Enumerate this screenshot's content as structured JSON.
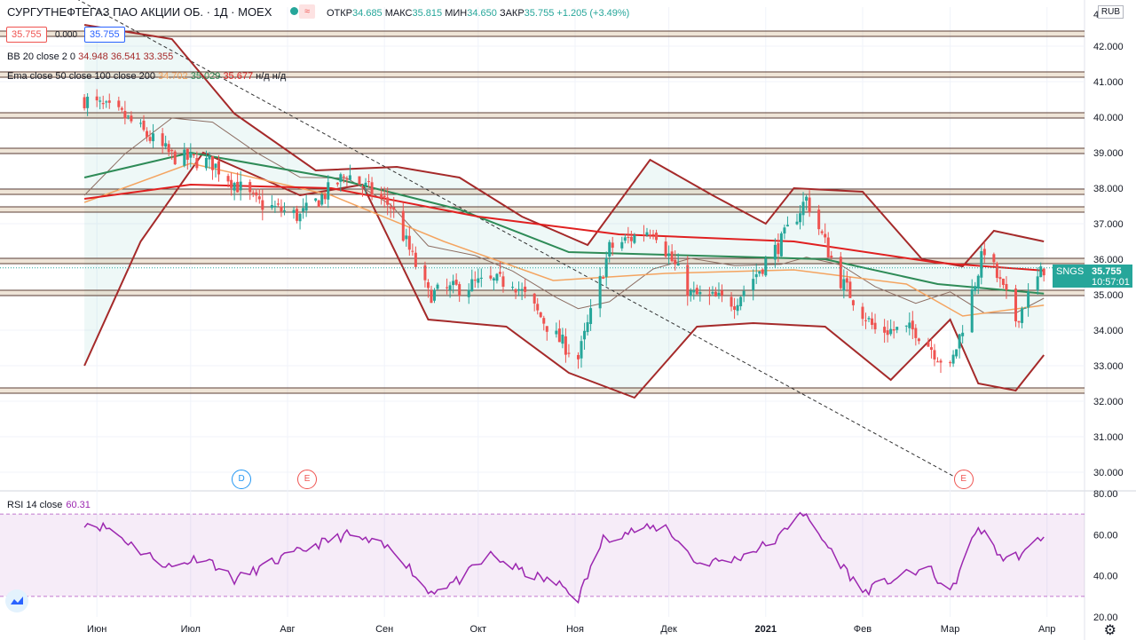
{
  "header": {
    "symbol_title": "СУРГУТНЕФТЕГАЗ ПАО АКЦИИ ОБ. · 1Д · MOEX",
    "status_icon": "market-open-dot",
    "status_box_icon": "≈",
    "ohlc": {
      "open_label": "ОТКР",
      "open": "34.685",
      "high_label": "МАКС",
      "high": "35.815",
      "low_label": "МИН",
      "low": "34.650",
      "close_label": "ЗАКР",
      "close": "35.755",
      "change": "+1.205 (+3.49%)"
    },
    "badges": {
      "bid": "35.755",
      "spread": "0.000",
      "ask": "35.755"
    },
    "currency": "RUB"
  },
  "legend": {
    "bb": {
      "label": "BB 20 close 2 0",
      "v1": "34.948",
      "v2": "36.541",
      "v3": "33.355"
    },
    "ema": {
      "label": "Ema close 50 close 100 close 200",
      "v1": "34.702",
      "v2": "35.029",
      "v3": "35.677",
      "na": "н/д н/д"
    }
  },
  "price_label": {
    "symbol": "SNGS",
    "price": "35.755",
    "countdown": "10:57:01"
  },
  "rsi": {
    "label": "RSI 14 close",
    "value": "60.31"
  },
  "events": [
    {
      "letter": "D",
      "type": "dividend",
      "date": "2020-07-17"
    },
    {
      "letter": "E",
      "type": "earnings",
      "date": "2020-08-07"
    },
    {
      "letter": "E",
      "type": "earnings",
      "date": "2021-03-05"
    }
  ],
  "colors": {
    "up": "#26a69a",
    "down": "#ef5350",
    "bb": "#a52a2a",
    "ema50": "#f4a460",
    "ema100": "#2e8b57",
    "ema200": "#e02020",
    "rsi": "#9c27b0",
    "hline": "#5d4037"
  },
  "chart_data": [
    {
      "type": "candlestick",
      "title": "СУРГУТНЕФТЕГАЗ ПАО АКЦИИ ОБ. · 1Д · MOEX",
      "x_tick_labels": [
        "Июн",
        "Июл",
        "Авг",
        "Сен",
        "Окт",
        "Ноя",
        "Дек",
        "2021",
        "Фев",
        "Мар",
        "Апр"
      ],
      "ylim": [
        29.5,
        43.1
      ],
      "y_ticks": [
        "30.000",
        "31.000",
        "32.000",
        "33.000",
        "34.000",
        "35.000",
        "36.000",
        "37.000",
        "38.000",
        "39.000",
        "40.000",
        "41.000",
        "42.000"
      ],
      "y_top_tick_partial": "4",
      "last_price": 35.755,
      "close_path": [
        {
          "x": "2020-05-28",
          "y": 40.5
        },
        {
          "x": "2020-06-10",
          "y": 40.0
        },
        {
          "x": "2020-06-25",
          "y": 38.9
        },
        {
          "x": "2020-07-08",
          "y": 38.7
        },
        {
          "x": "2020-07-22",
          "y": 37.6
        },
        {
          "x": "2020-08-05",
          "y": 37.2
        },
        {
          "x": "2020-08-20",
          "y": 38.4
        },
        {
          "x": "2020-09-03",
          "y": 37.5
        },
        {
          "x": "2020-09-15",
          "y": 35.0
        },
        {
          "x": "2020-09-30",
          "y": 35.3
        },
        {
          "x": "2020-10-12",
          "y": 35.4
        },
        {
          "x": "2020-10-26",
          "y": 33.8
        },
        {
          "x": "2020-11-02",
          "y": 33.2
        },
        {
          "x": "2020-11-12",
          "y": 36.3
        },
        {
          "x": "2020-11-26",
          "y": 36.9
        },
        {
          "x": "2020-12-08",
          "y": 35.0
        },
        {
          "x": "2020-12-22",
          "y": 34.8
        },
        {
          "x": "2021-01-06",
          "y": 36.5
        },
        {
          "x": "2021-01-14",
          "y": 37.7
        },
        {
          "x": "2021-01-25",
          "y": 35.4
        },
        {
          "x": "2021-02-05",
          "y": 34.0
        },
        {
          "x": "2021-02-18",
          "y": 34.0
        },
        {
          "x": "2021-03-01",
          "y": 32.9
        },
        {
          "x": "2021-03-12",
          "y": 36.3
        },
        {
          "x": "2021-03-22",
          "y": 34.3
        },
        {
          "x": "2021-03-31",
          "y": 35.755
        }
      ],
      "bb_upper": [
        {
          "x": "2020-05-28",
          "y": 42.6
        },
        {
          "x": "2020-06-25",
          "y": 42.2
        },
        {
          "x": "2020-07-15",
          "y": 40.1
        },
        {
          "x": "2020-08-10",
          "y": 38.5
        },
        {
          "x": "2020-09-05",
          "y": 38.6
        },
        {
          "x": "2020-09-25",
          "y": 38.3
        },
        {
          "x": "2020-10-15",
          "y": 37.2
        },
        {
          "x": "2020-11-05",
          "y": 36.4
        },
        {
          "x": "2020-11-25",
          "y": 38.8
        },
        {
          "x": "2020-12-15",
          "y": 37.8
        },
        {
          "x": "2021-01-01",
          "y": 37.0
        },
        {
          "x": "2021-01-10",
          "y": 38.0
        },
        {
          "x": "2021-02-01",
          "y": 37.9
        },
        {
          "x": "2021-02-20",
          "y": 36.0
        },
        {
          "x": "2021-03-05",
          "y": 35.8
        },
        {
          "x": "2021-03-15",
          "y": 36.8
        },
        {
          "x": "2021-03-31",
          "y": 36.5
        }
      ],
      "bb_lower": [
        {
          "x": "2020-05-28",
          "y": 33.0
        },
        {
          "x": "2020-06-15",
          "y": 36.5
        },
        {
          "x": "2020-07-05",
          "y": 39.0
        },
        {
          "x": "2020-08-05",
          "y": 37.8
        },
        {
          "x": "2020-08-25",
          "y": 38.1
        },
        {
          "x": "2020-09-15",
          "y": 34.3
        },
        {
          "x": "2020-10-10",
          "y": 34.1
        },
        {
          "x": "2020-10-30",
          "y": 32.8
        },
        {
          "x": "2020-11-20",
          "y": 32.1
        },
        {
          "x": "2020-12-10",
          "y": 34.1
        },
        {
          "x": "2020-12-28",
          "y": 34.2
        },
        {
          "x": "2021-01-20",
          "y": 34.1
        },
        {
          "x": "2021-02-10",
          "y": 32.6
        },
        {
          "x": "2021-03-01",
          "y": 34.3
        },
        {
          "x": "2021-03-10",
          "y": 32.5
        },
        {
          "x": "2021-03-22",
          "y": 32.3
        },
        {
          "x": "2021-03-31",
          "y": 33.3
        }
      ],
      "ema50": [
        {
          "x": "2020-05-28",
          "y": 37.6
        },
        {
          "x": "2020-07-01",
          "y": 38.7
        },
        {
          "x": "2020-08-15",
          "y": 37.8
        },
        {
          "x": "2020-09-20",
          "y": 36.5
        },
        {
          "x": "2020-10-25",
          "y": 35.4
        },
        {
          "x": "2020-11-30",
          "y": 35.6
        },
        {
          "x": "2021-01-10",
          "y": 35.7
        },
        {
          "x": "2021-02-15",
          "y": 35.3
        },
        {
          "x": "2021-03-05",
          "y": 34.4
        },
        {
          "x": "2021-03-31",
          "y": 34.702
        }
      ],
      "ema100": [
        {
          "x": "2020-05-28",
          "y": 38.3
        },
        {
          "x": "2020-07-01",
          "y": 39.0
        },
        {
          "x": "2020-08-15",
          "y": 38.3
        },
        {
          "x": "2020-09-25",
          "y": 37.4
        },
        {
          "x": "2020-10-30",
          "y": 36.2
        },
        {
          "x": "2020-12-10",
          "y": 36.1
        },
        {
          "x": "2021-01-20",
          "y": 36.0
        },
        {
          "x": "2021-02-25",
          "y": 35.3
        },
        {
          "x": "2021-03-31",
          "y": 35.029
        }
      ],
      "ema200": [
        {
          "x": "2020-05-28",
          "y": 37.7
        },
        {
          "x": "2020-07-01",
          "y": 38.1
        },
        {
          "x": "2020-08-15",
          "y": 38.0
        },
        {
          "x": "2020-10-01",
          "y": 37.2
        },
        {
          "x": "2020-11-15",
          "y": 36.7
        },
        {
          "x": "2021-01-10",
          "y": 36.5
        },
        {
          "x": "2021-02-25",
          "y": 35.9
        },
        {
          "x": "2021-03-31",
          "y": 35.677
        }
      ],
      "horizontal_levels": [
        42.35,
        41.2,
        40.05,
        39.05,
        37.9,
        37.4,
        35.95,
        35.05,
        32.3
      ],
      "trendline": [
        {
          "x": "2020-05-22",
          "y": 43.5
        },
        {
          "x": "2021-03-06",
          "y": 29.7
        }
      ]
    },
    {
      "type": "line",
      "title": "RSI 14 close",
      "ylim": [
        20,
        80
      ],
      "y_ticks": [
        "20.00",
        "40.00",
        "60.00",
        "80.00"
      ],
      "bands": [
        30,
        70
      ],
      "series": [
        {
          "name": "RSI 14 close",
          "values": [
            {
              "x": "2020-05-28",
              "y": 66
            },
            {
              "x": "2020-06-05",
              "y": 63
            },
            {
              "x": "2020-06-15",
              "y": 52
            },
            {
              "x": "2020-06-25",
              "y": 44
            },
            {
              "x": "2020-07-05",
              "y": 50
            },
            {
              "x": "2020-07-15",
              "y": 38
            },
            {
              "x": "2020-07-28",
              "y": 47
            },
            {
              "x": "2020-08-10",
              "y": 55
            },
            {
              "x": "2020-08-20",
              "y": 60
            },
            {
              "x": "2020-09-05",
              "y": 52
            },
            {
              "x": "2020-09-15",
              "y": 32
            },
            {
              "x": "2020-09-25",
              "y": 38
            },
            {
              "x": "2020-10-05",
              "y": 50
            },
            {
              "x": "2020-10-15",
              "y": 42
            },
            {
              "x": "2020-10-28",
              "y": 35
            },
            {
              "x": "2020-11-02",
              "y": 29
            },
            {
              "x": "2020-11-10",
              "y": 58
            },
            {
              "x": "2020-11-20",
              "y": 62
            },
            {
              "x": "2020-11-30",
              "y": 64
            },
            {
              "x": "2020-12-10",
              "y": 46
            },
            {
              "x": "2020-12-22",
              "y": 48
            },
            {
              "x": "2021-01-05",
              "y": 58
            },
            {
              "x": "2021-01-12",
              "y": 72
            },
            {
              "x": "2021-01-20",
              "y": 56
            },
            {
              "x": "2021-02-01",
              "y": 32
            },
            {
              "x": "2021-02-10",
              "y": 38
            },
            {
              "x": "2021-02-22",
              "y": 44
            },
            {
              "x": "2021-03-01",
              "y": 31
            },
            {
              "x": "2021-03-10",
              "y": 64
            },
            {
              "x": "2021-03-18",
              "y": 48
            },
            {
              "x": "2021-03-25",
              "y": 51
            },
            {
              "x": "2021-03-31",
              "y": 60.31
            }
          ]
        }
      ]
    }
  ]
}
